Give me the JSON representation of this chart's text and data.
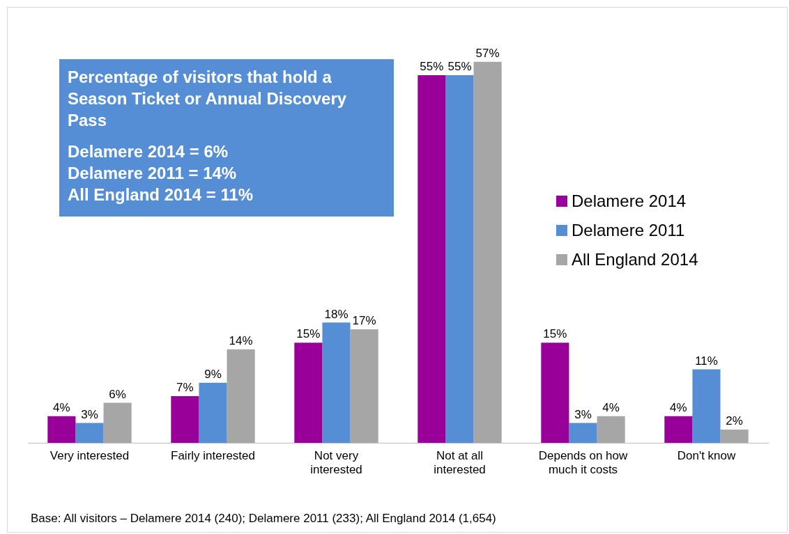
{
  "chart_data": {
    "type": "bar",
    "categories": [
      "Very interested",
      "Fairly interested",
      "Not very interested",
      "Not at all interested",
      "Depends on how much it costs",
      "Don't know"
    ],
    "series": [
      {
        "name": "Delamere 2014",
        "color": "#990099",
        "values": [
          4,
          7,
          15,
          55,
          15,
          4
        ],
        "value_labels": [
          "4%",
          "7%",
          "15%",
          "55%",
          "15%",
          "4%"
        ]
      },
      {
        "name": "Delamere 2011",
        "color": "#558ed5",
        "values": [
          3,
          9,
          18,
          55,
          3,
          11
        ],
        "value_labels": [
          "3%",
          "9%",
          "18%",
          "55%",
          "3%",
          "11%"
        ]
      },
      {
        "name": "All England 2014",
        "color": "#a6a6a6",
        "values": [
          6,
          14,
          17,
          57,
          4,
          2
        ],
        "value_labels": [
          "6%",
          "14%",
          "17%",
          "57%",
          "4%",
          "2%"
        ]
      }
    ],
    "legend": "right",
    "annotations": [
      "Percentage of visitors that hold a Season Ticket or Annual Discovery Pass",
      "Delamere 2014 = 6%",
      "Delamere 2011 = 14%",
      "All England 2014 = 11%",
      "Base: All visitors – Delamere 2014 (240); Delamere 2011 (233); All England 2014 (1,654)"
    ]
  }
}
